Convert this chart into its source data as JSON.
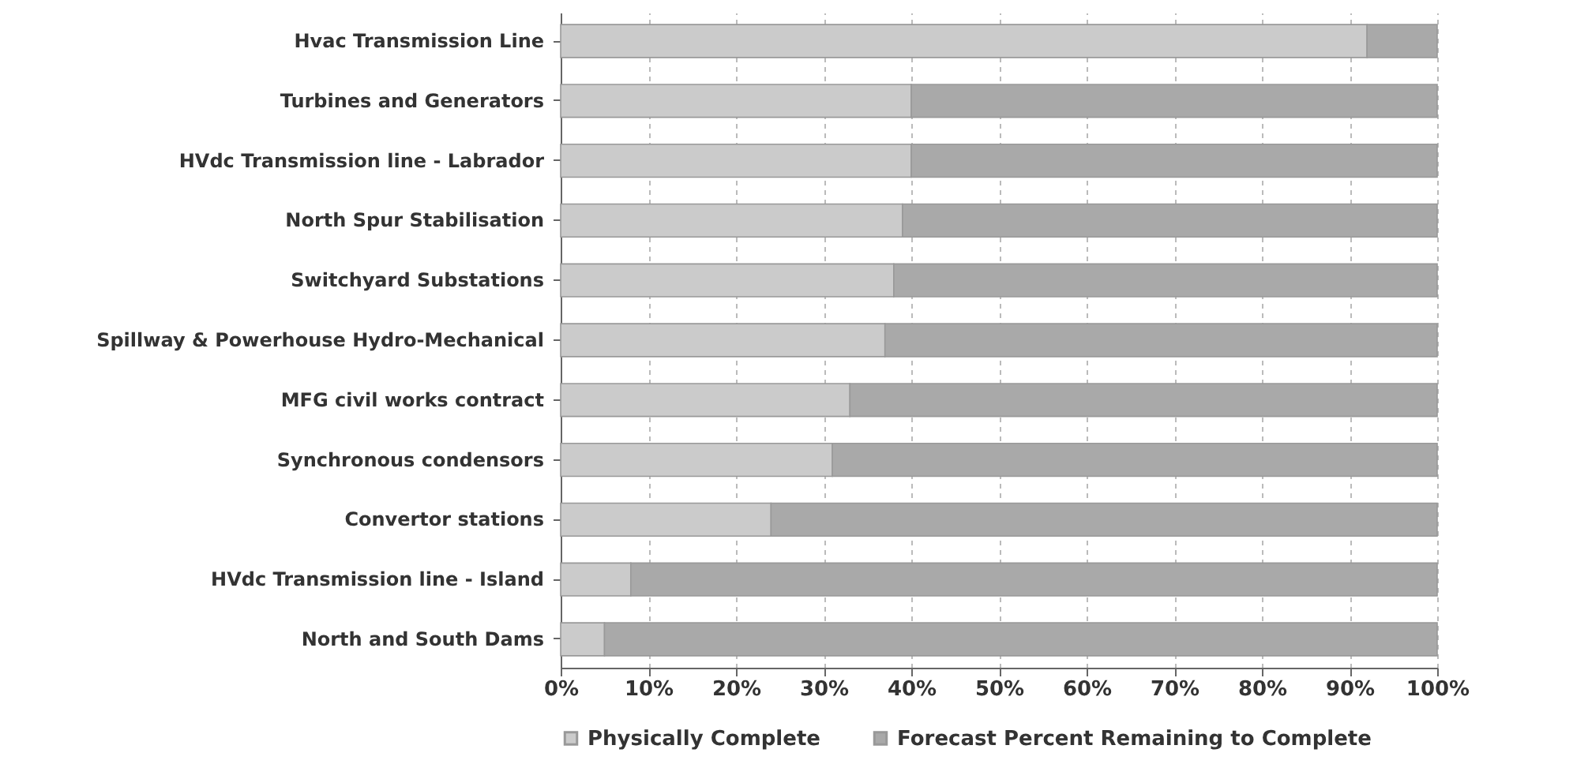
{
  "chart_data": {
    "type": "bar",
    "orientation": "horizontal",
    "stacked": true,
    "categories": [
      "Hvac Transmission Line",
      "Turbines and Generators",
      "HVdc Transmission line - Labrador",
      "North Spur Stabilisation",
      "Switchyard Substations",
      "Spillway & Powerhouse Hydro-Mechanical",
      "MFG civil works contract",
      "Synchronous condensors",
      "Convertor stations",
      "HVdc Transmission line - Island",
      "North and South Dams"
    ],
    "series": [
      {
        "name": "Physically Complete",
        "color": "#cbcbcb",
        "values": [
          92,
          40,
          40,
          39,
          38,
          37,
          33,
          31,
          24,
          8,
          5
        ]
      },
      {
        "name": "Forecast Percent Remaining to Complete",
        "color": "#a9a9a9",
        "values": [
          8,
          60,
          60,
          61,
          62,
          63,
          67,
          69,
          76,
          92,
          95
        ]
      }
    ],
    "xlim": [
      0,
      100
    ],
    "xticks": [
      {
        "value": 0,
        "label": "0%"
      },
      {
        "value": 10,
        "label": "10%"
      },
      {
        "value": 20,
        "label": "20%"
      },
      {
        "value": 30,
        "label": "30%"
      },
      {
        "value": 40,
        "label": "40%"
      },
      {
        "value": 50,
        "label": "50%"
      },
      {
        "value": 60,
        "label": "60%"
      },
      {
        "value": 70,
        "label": "70%"
      },
      {
        "value": 80,
        "label": "80%"
      },
      {
        "value": 90,
        "label": "90%"
      },
      {
        "value": 100,
        "label": "100%"
      }
    ],
    "grid": "x",
    "legend": "bottom"
  }
}
